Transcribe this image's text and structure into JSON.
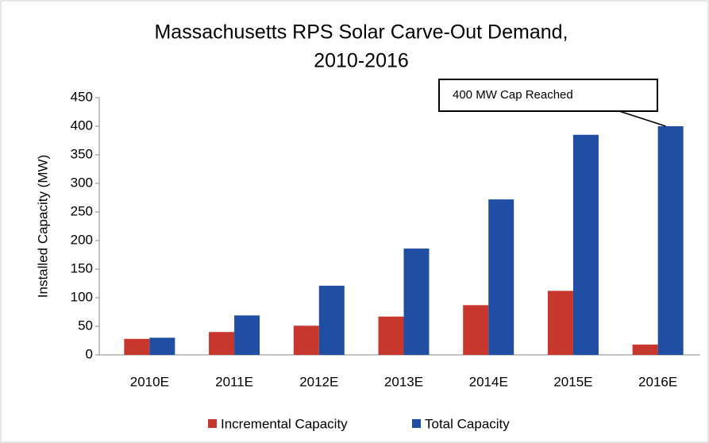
{
  "chart_data": {
    "type": "bar",
    "title": [
      "Massachusetts RPS Solar Carve-Out Demand,",
      "2010-2016"
    ],
    "y_label": "Installed Capacity (MW)",
    "categories": [
      "2010E",
      "2011E",
      "2012E",
      "2013E",
      "2014E",
      "2015E",
      "2016E"
    ],
    "series": [
      {
        "name": "Incremental Capacity",
        "color": "#c8372d",
        "values": [
          28,
          40,
          51,
          67,
          87,
          112,
          18
        ]
      },
      {
        "name": "Total Capacity",
        "color": "#1f4ea3",
        "values": [
          30,
          69,
          121,
          186,
          272,
          385,
          400
        ]
      }
    ],
    "ylim": [
      0,
      450
    ],
    "yticks": [
      0,
      50,
      100,
      150,
      200,
      250,
      300,
      350,
      400,
      450
    ],
    "grid": false,
    "legend": "bottom",
    "annotation": "400 MW Cap Reached"
  }
}
